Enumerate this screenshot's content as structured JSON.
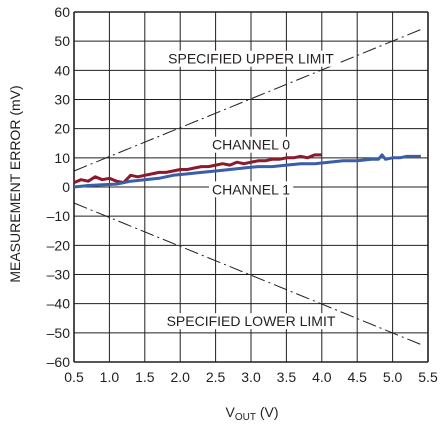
{
  "chart_data": {
    "type": "line",
    "xlabel_main": "V",
    "xlabel_sub": "OUT",
    "xlabel_unit": " (V)",
    "ylabel": "MEASUREMENT ERROR (mV)",
    "xlim": [
      0.5,
      5.5
    ],
    "ylim": [
      -60,
      60
    ],
    "x_ticks": [
      "0.5",
      "1.0",
      "1.5",
      "2.0",
      "2.5",
      "3.0",
      "3.5",
      "4.0",
      "4.5",
      "5.0",
      "5.5"
    ],
    "x_tick_values": [
      0.5,
      1.0,
      1.5,
      2.0,
      2.5,
      3.0,
      3.5,
      4.0,
      4.5,
      5.0,
      5.5
    ],
    "y_ticks": [
      "60",
      "50",
      "40",
      "30",
      "20",
      "10",
      "0",
      "–10",
      "–20",
      "–30",
      "–40",
      "–50",
      "–60"
    ],
    "y_tick_values": [
      60,
      50,
      40,
      30,
      20,
      10,
      0,
      -10,
      -20,
      -30,
      -40,
      -50,
      -60
    ],
    "grid": true,
    "series": [
      {
        "name": "CHANNEL 0",
        "color": "#8b1a2b",
        "x": [
          0.5,
          0.6,
          0.7,
          0.8,
          0.9,
          1.0,
          1.1,
          1.2,
          1.3,
          1.4,
          1.5,
          1.6,
          1.7,
          1.8,
          1.9,
          2.0,
          2.1,
          2.2,
          2.3,
          2.4,
          2.5,
          2.6,
          2.7,
          2.8,
          2.9,
          3.0,
          3.1,
          3.2,
          3.3,
          3.4,
          3.5,
          3.6,
          3.7,
          3.8,
          3.9,
          4.0
        ],
        "values": [
          1.5,
          2.5,
          2.0,
          3.5,
          2.5,
          3.0,
          2.0,
          1.5,
          4.0,
          3.5,
          4.0,
          4.5,
          5.0,
          5.0,
          5.5,
          6.0,
          6.0,
          6.5,
          7.0,
          7.0,
          7.5,
          8.0,
          7.5,
          8.5,
          8.0,
          8.5,
          9.0,
          9.0,
          9.5,
          9.5,
          10.0,
          10.0,
          10.5,
          10.0,
          11.0,
          11.0
        ]
      },
      {
        "name": "CHANNEL 1",
        "color": "#3a5fa8",
        "x": [
          0.5,
          0.7,
          0.9,
          1.1,
          1.3,
          1.5,
          1.7,
          1.9,
          2.1,
          2.3,
          2.5,
          2.7,
          2.9,
          3.1,
          3.3,
          3.5,
          3.7,
          3.9,
          4.1,
          4.3,
          4.5,
          4.7,
          4.8,
          4.85,
          4.9,
          5.0,
          5.1,
          5.2,
          5.3,
          5.4
        ],
        "values": [
          0.0,
          0.5,
          0.8,
          1.0,
          2.0,
          2.5,
          3.0,
          4.0,
          4.5,
          5.0,
          5.5,
          6.0,
          6.5,
          7.0,
          7.0,
          7.5,
          8.0,
          8.0,
          8.5,
          9.0,
          9.0,
          9.5,
          9.5,
          11.0,
          9.5,
          10.0,
          10.0,
          10.5,
          10.5,
          10.5
        ]
      },
      {
        "name": "SPECIFIED UPPER LIMIT",
        "color": "#231f20",
        "x": [
          0.5,
          5.4
        ],
        "values": [
          5.5,
          54
        ]
      },
      {
        "name": "SPECIFIED LOWER LIMIT",
        "color": "#231f20",
        "x": [
          0.5,
          5.4
        ],
        "values": [
          -5.5,
          -54
        ]
      }
    ],
    "annotations": [
      {
        "text": "SPECIFIED UPPER LIMIT",
        "x": 3.0,
        "y": 44
      },
      {
        "text": "CHANNEL 0",
        "x": 3.0,
        "y": 14.5
      },
      {
        "text": "CHANNEL 1",
        "x": 3.0,
        "y": -0.8
      },
      {
        "text": "SPECIFIED LOWER LIMIT",
        "x": 3.0,
        "y": -46
      }
    ]
  }
}
